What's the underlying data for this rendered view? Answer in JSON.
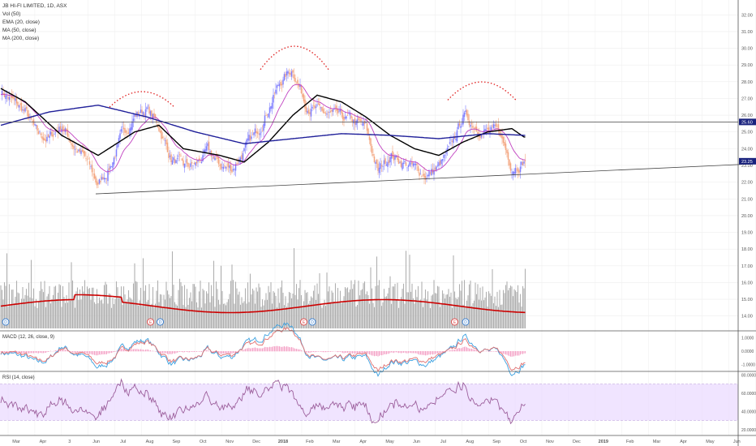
{
  "legend": {
    "symbol": "JB HI-FI LIMITED, 1D, ASX",
    "vol": "Vol (50)",
    "ema": "EMA (20, close)",
    "ma50": "MA (50, close)",
    "ma200": "MA (200, close)"
  },
  "chart_data": {
    "type": "line",
    "title": "JB HI-FI LIMITED, 1D, ASX",
    "price_axis": {
      "ticks": [
        "32.00",
        "31.00",
        "30.00",
        "29.00",
        "28.00",
        "27.00",
        "26.00",
        "25.00",
        "24.00",
        "23.00",
        "22.00",
        "21.00",
        "20.00",
        "19.00",
        "18.00",
        "17.00",
        "16.00",
        "15.00",
        "14.00"
      ],
      "range": [
        13.5,
        32.5
      ],
      "last_price": "23.25",
      "resistance_level": "25.60"
    },
    "x_ticks": [
      "Mar",
      "Apr",
      "3",
      "Jun",
      "Jul",
      "Aug",
      "Sep",
      "Oct",
      "Nov",
      "Dec",
      "2018",
      "Feb",
      "Mar",
      "Apr",
      "May",
      "Jun",
      "Jul",
      "Aug",
      "Sep",
      "Oct",
      "Nov",
      "Dec",
      "2019",
      "Feb",
      "Mar",
      "Apr",
      "May",
      "Jun",
      "Jul"
    ],
    "series_path": [
      {
        "i": 0,
        "close": 27.5
      },
      {
        "i": 10,
        "close": 26.8
      },
      {
        "i": 20,
        "close": 26.2
      },
      {
        "i": 30,
        "close": 24.8
      },
      {
        "i": 40,
        "close": 24.6
      },
      {
        "i": 50,
        "close": 25.4
      },
      {
        "i": 60,
        "close": 24.2
      },
      {
        "i": 70,
        "close": 23.3
      },
      {
        "i": 80,
        "close": 21.8
      },
      {
        "i": 90,
        "close": 23.0
      },
      {
        "i": 100,
        "close": 24.8
      },
      {
        "i": 110,
        "close": 26.0
      },
      {
        "i": 120,
        "close": 26.4
      },
      {
        "i": 130,
        "close": 25.3
      },
      {
        "i": 140,
        "close": 23.4
      },
      {
        "i": 150,
        "close": 22.9
      },
      {
        "i": 160,
        "close": 23.0
      },
      {
        "i": 170,
        "close": 23.8
      },
      {
        "i": 180,
        "close": 23.0
      },
      {
        "i": 190,
        "close": 22.8
      },
      {
        "i": 200,
        "close": 23.9
      },
      {
        "i": 210,
        "close": 24.9
      },
      {
        "i": 220,
        "close": 26.5
      },
      {
        "i": 230,
        "close": 28.0
      },
      {
        "i": 240,
        "close": 28.8
      },
      {
        "i": 250,
        "close": 26.8
      },
      {
        "i": 260,
        "close": 26.2
      },
      {
        "i": 270,
        "close": 26.0
      },
      {
        "i": 280,
        "close": 25.8
      },
      {
        "i": 290,
        "close": 25.6
      },
      {
        "i": 300,
        "close": 25.2
      },
      {
        "i": 310,
        "close": 22.6
      },
      {
        "i": 320,
        "close": 23.7
      },
      {
        "i": 330,
        "close": 23.2
      },
      {
        "i": 340,
        "close": 22.8
      },
      {
        "i": 350,
        "close": 22.4
      },
      {
        "i": 360,
        "close": 22.9
      },
      {
        "i": 370,
        "close": 24.0
      },
      {
        "i": 380,
        "close": 26.0
      },
      {
        "i": 390,
        "close": 25.4
      },
      {
        "i": 400,
        "close": 25.0
      },
      {
        "i": 410,
        "close": 24.9
      },
      {
        "i": 420,
        "close": 23.0
      },
      {
        "i": 430,
        "close": 23.25
      }
    ],
    "ma200_path": [
      {
        "i": 0,
        "v": 25.4
      },
      {
        "i": 40,
        "v": 26.2
      },
      {
        "i": 80,
        "v": 26.6
      },
      {
        "i": 120,
        "v": 25.9
      },
      {
        "i": 160,
        "v": 25.0
      },
      {
        "i": 200,
        "v": 24.3
      },
      {
        "i": 240,
        "v": 24.6
      },
      {
        "i": 280,
        "v": 24.9
      },
      {
        "i": 320,
        "v": 24.8
      },
      {
        "i": 360,
        "v": 24.6
      },
      {
        "i": 400,
        "v": 24.9
      },
      {
        "i": 430,
        "v": 24.8
      }
    ],
    "ma50_path": [
      {
        "i": 0,
        "v": 27.6
      },
      {
        "i": 20,
        "v": 26.8
      },
      {
        "i": 50,
        "v": 24.8
      },
      {
        "i": 80,
        "v": 23.6
      },
      {
        "i": 110,
        "v": 25.0
      },
      {
        "i": 130,
        "v": 25.4
      },
      {
        "i": 150,
        "v": 24.0
      },
      {
        "i": 180,
        "v": 23.6
      },
      {
        "i": 200,
        "v": 23.2
      },
      {
        "i": 220,
        "v": 24.4
      },
      {
        "i": 240,
        "v": 26.0
      },
      {
        "i": 260,
        "v": 27.2
      },
      {
        "i": 280,
        "v": 26.8
      },
      {
        "i": 300,
        "v": 25.9
      },
      {
        "i": 320,
        "v": 24.8
      },
      {
        "i": 340,
        "v": 24.0
      },
      {
        "i": 360,
        "v": 23.6
      },
      {
        "i": 380,
        "v": 24.4
      },
      {
        "i": 400,
        "v": 25.0
      },
      {
        "i": 420,
        "v": 25.2
      },
      {
        "i": 430,
        "v": 24.7
      }
    ],
    "trendline": {
      "from": {
        "i": 78,
        "v": 21.3
      },
      "to": {
        "i": 600,
        "v": 23.1
      }
    },
    "resistance": {
      "v": 25.6
    },
    "volume_ma_level": 0.55,
    "volume_axis": {
      "range": [
        0,
        1
      ]
    },
    "macd": {
      "label": "MACD (12, 26, close, 9)",
      "ticks": [
        "1.0000",
        "0.0000",
        "-1.0000"
      ],
      "range": [
        -1.4,
        1.4
      ]
    },
    "rsi": {
      "label": "RSI (14, close)",
      "ticks": [
        "80.0000",
        "60.0000",
        "40.0000",
        "20.0000"
      ],
      "range": [
        18,
        82
      ],
      "band": [
        30,
        70
      ]
    },
    "event_badges": [
      {
        "i": 4,
        "label": "D"
      },
      {
        "i": 123,
        "label": "E"
      },
      {
        "i": 131,
        "label": "D"
      },
      {
        "i": 249,
        "label": "E"
      },
      {
        "i": 256,
        "label": "D"
      },
      {
        "i": 373,
        "label": "E"
      },
      {
        "i": 382,
        "label": "D"
      }
    ],
    "colors": {
      "up": "#7f7fff",
      "down": "#f4a680",
      "ema": "#c040c0",
      "ma50": "#000000",
      "ma200": "#1f1f99",
      "vol_ma": "#cc0000",
      "volume": "#b0b0b0",
      "macd": "#3aa0e0",
      "signal": "#e07070",
      "hist": "#f4a6c8",
      "rsi": "#9c5f9c",
      "rsi_band": "#ead8ff",
      "dotted": "#e02020"
    }
  }
}
